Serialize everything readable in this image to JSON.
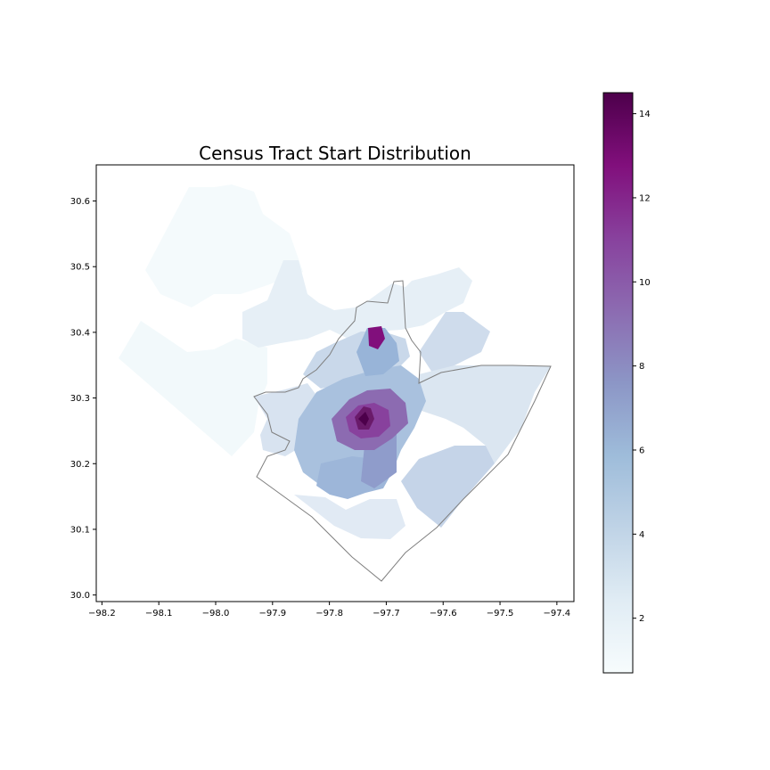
{
  "chart_data": {
    "type": "choropleth map",
    "title": "Census Tract Start Distribution",
    "x_ticks": [
      "−98.2",
      "−98.1",
      "−98.0",
      "−97.9",
      "−97.8",
      "−97.7",
      "−97.6",
      "−97.5",
      "−97.4"
    ],
    "x_tick_values": [
      -98.2,
      -98.1,
      -98.0,
      -97.9,
      -97.8,
      -97.7,
      -97.6,
      -97.5,
      -97.4
    ],
    "y_ticks": [
      "30.0",
      "30.1",
      "30.2",
      "30.3",
      "30.4",
      "30.5",
      "30.6"
    ],
    "y_tick_values": [
      30.0,
      30.1,
      30.2,
      30.3,
      30.4,
      30.5,
      30.6
    ],
    "xlim": [
      -98.21,
      -97.37
    ],
    "ylim": [
      29.99,
      30.655
    ],
    "colorbar": {
      "colormap": "BuPu",
      "range": [
        0.7,
        14.5
      ],
      "ticks": [
        "2",
        "4",
        "6",
        "8",
        "10",
        "12",
        "14"
      ],
      "tick_values": [
        2,
        4,
        6,
        8,
        10,
        12,
        14
      ]
    },
    "city_outline_color": "#7f7f7f"
  }
}
